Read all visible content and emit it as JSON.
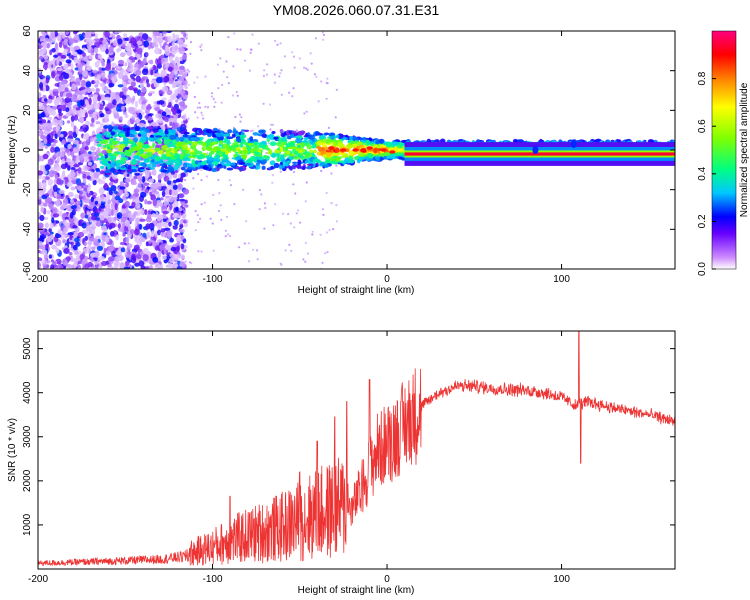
{
  "title": "YM08.2026.060.07.31.E31",
  "chart_data": [
    {
      "type": "heatmap",
      "name": "spectrogram",
      "xlabel": "Height of straight line (km)",
      "ylabel": "Frequency (Hz)",
      "xlim": [
        -200,
        165
      ],
      "ylim": [
        -60,
        60
      ],
      "x_ticks": [
        -200,
        -100,
        0,
        100
      ],
      "y_ticks": [
        -60,
        -40,
        -20,
        0,
        20,
        40,
        60
      ],
      "colorbar": {
        "label": "Normalized spectral amplitude",
        "range": [
          0,
          1
        ],
        "ticks": [
          0.0,
          0.2,
          0.4,
          0.6,
          0.8
        ]
      }
    },
    {
      "type": "line",
      "name": "snr",
      "xlabel": "Height of straight line (km)",
      "ylabel": "SNR (10 * v/v)",
      "xlim": [
        -200,
        165
      ],
      "ylim": [
        0,
        5400
      ],
      "x_ticks": [
        -200,
        -100,
        0,
        100
      ],
      "y_ticks": [
        1000,
        2000,
        3000,
        4000,
        5000
      ],
      "color": "#ee3333",
      "profile": {
        "x": [
          -200,
          -160,
          -130,
          -115,
          -100,
          -90,
          -80,
          -70,
          -60,
          -50,
          -40,
          -30,
          -22,
          -21,
          -15,
          -10,
          -5,
          0,
          10,
          20,
          30,
          40,
          50,
          60,
          80,
          90,
          100,
          108,
          115,
          130,
          150,
          165
        ],
        "y": [
          150,
          200,
          250,
          330,
          500,
          650,
          750,
          850,
          950,
          1100,
          1250,
          1350,
          1450,
          1300,
          1800,
          2300,
          2700,
          2850,
          3250,
          3700,
          4000,
          4150,
          4150,
          4100,
          4050,
          4000,
          3900,
          3700,
          3800,
          3650,
          3500,
          3350
        ]
      },
      "spikes": [
        {
          "x": -90,
          "y": 1650
        },
        {
          "x": -50,
          "y": 2200
        },
        {
          "x": -40,
          "y": 2900
        },
        {
          "x": -30,
          "y": 3450
        },
        {
          "x": -23,
          "y": 3800
        },
        {
          "x": -10,
          "y": 4300
        },
        {
          "x": 8,
          "y": 3800
        },
        {
          "x": 110,
          "y": 5400
        },
        {
          "x": 111,
          "y": 2400
        }
      ]
    }
  ]
}
